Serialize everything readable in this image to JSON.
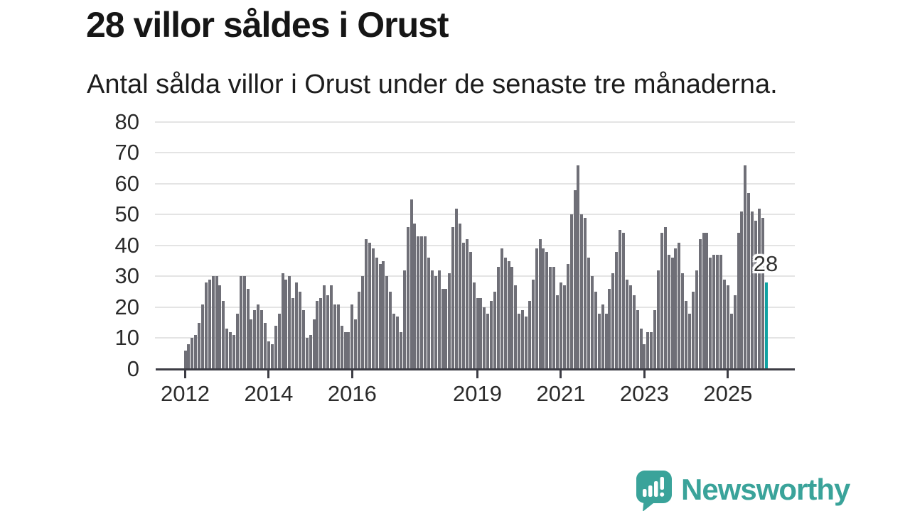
{
  "header": {
    "title": "28 villor såldes i Orust",
    "subtitle": "Antal sålda villor i Orust under de senaste tre månaderna."
  },
  "chart_data": {
    "type": "bar",
    "title": "28 villor såldes i Orust",
    "subtitle": "Antal sålda villor i Orust under de senaste tre månaderna.",
    "x_start": "2012-01",
    "x_interval": "month",
    "values": [
      6,
      8,
      10,
      11,
      15,
      21,
      28,
      29,
      30,
      30,
      27,
      22,
      13,
      12,
      11,
      18,
      30,
      30,
      26,
      16,
      19,
      21,
      19,
      15,
      9,
      8,
      14,
      18,
      31,
      29,
      30,
      23,
      28,
      25,
      19,
      10,
      11,
      16,
      22,
      23,
      27,
      24,
      27,
      21,
      21,
      14,
      12,
      12,
      21,
      16,
      25,
      30,
      42,
      41,
      39,
      36,
      34,
      35,
      30,
      25,
      18,
      17,
      12,
      32,
      46,
      55,
      47,
      43,
      43,
      43,
      36,
      32,
      30,
      32,
      26,
      26,
      31,
      46,
      52,
      47,
      41,
      42,
      38,
      28,
      23,
      23,
      20,
      18,
      22,
      25,
      33,
      39,
      36,
      35,
      33,
      27,
      18,
      19,
      17,
      22,
      29,
      39,
      42,
      39,
      38,
      33,
      33,
      24,
      28,
      27,
      34,
      50,
      58,
      66,
      50,
      49,
      36,
      30,
      25,
      18,
      21,
      18,
      26,
      31,
      38,
      45,
      44,
      29,
      27,
      24,
      19,
      13,
      8,
      12,
      12,
      19,
      32,
      44,
      46,
      37,
      36,
      39,
      41,
      31,
      22,
      18,
      25,
      32,
      42,
      44,
      44,
      36,
      37,
      37,
      37,
      29,
      27,
      18,
      24,
      44,
      51,
      66,
      57,
      51,
      48,
      52,
      49,
      28
    ],
    "highlight": {
      "index": 167,
      "label": "28",
      "value": 28,
      "color": "#10a2a2"
    },
    "bar_color": "#6f6f77",
    "grid_color": "#e4e4e4",
    "axis_color": "#3c3c44",
    "ylim": [
      0,
      80
    ],
    "yticks": [
      0,
      10,
      20,
      30,
      40,
      50,
      60,
      70,
      80
    ],
    "xticks": [
      {
        "label": "2012",
        "month_index": 0
      },
      {
        "label": "2014",
        "month_index": 24
      },
      {
        "label": "2016",
        "month_index": 48
      },
      {
        "label": "2019",
        "month_index": 84
      },
      {
        "label": "2021",
        "month_index": 108
      },
      {
        "label": "2023",
        "month_index": 132
      },
      {
        "label": "2025",
        "month_index": 156
      }
    ],
    "grid": true,
    "legend_position": "none"
  },
  "footer": {
    "brand": "Newsworthy",
    "brand_color": "#3aa39a"
  }
}
